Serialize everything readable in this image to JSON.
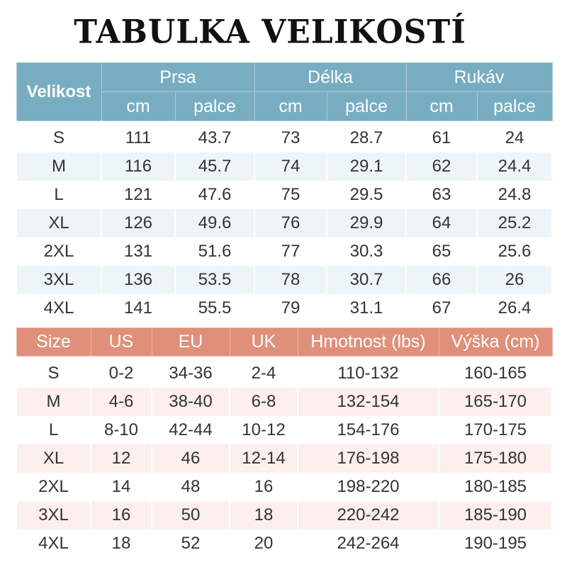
{
  "title": "TABULKA VELIKOSTÍ",
  "colors": {
    "table1_header": "#78adc1",
    "table1_alt_row": "#eef5f8",
    "table2_header": "#e0907a",
    "table2_alt_row": "#fcefed"
  },
  "table1": {
    "size_header": "Velikost",
    "groups": [
      "Prsa",
      "Délka",
      "Rukáv"
    ],
    "units": [
      "cm",
      "palce",
      "cm",
      "palce",
      "cm",
      "palce"
    ],
    "rows": [
      [
        "S",
        "111",
        "43.7",
        "73",
        "28.7",
        "61",
        "24"
      ],
      [
        "M",
        "116",
        "45.7",
        "74",
        "29.1",
        "62",
        "24.4"
      ],
      [
        "L",
        "121",
        "47.6",
        "75",
        "29.5",
        "63",
        "24.8"
      ],
      [
        "XL",
        "126",
        "49.6",
        "76",
        "29.9",
        "64",
        "25.2"
      ],
      [
        "2XL",
        "131",
        "51.6",
        "77",
        "30.3",
        "65",
        "25.6"
      ],
      [
        "3XL",
        "136",
        "53.5",
        "78",
        "30.7",
        "66",
        "26"
      ],
      [
        "4XL",
        "141",
        "55.5",
        "79",
        "31.1",
        "67",
        "26.4"
      ]
    ]
  },
  "table2": {
    "headers": [
      "Size",
      "US",
      "EU",
      "UK",
      "Hmotnost (lbs)",
      "Výška (cm)"
    ],
    "rows": [
      [
        "S",
        "0-2",
        "34-36",
        "2-4",
        "110-132",
        "160-165"
      ],
      [
        "M",
        "4-6",
        "38-40",
        "6-8",
        "132-154",
        "165-170"
      ],
      [
        "L",
        "8-10",
        "42-44",
        "10-12",
        "154-176",
        "170-175"
      ],
      [
        "XL",
        "12",
        "46",
        "12-14",
        "176-198",
        "175-180"
      ],
      [
        "2XL",
        "14",
        "48",
        "16",
        "198-220",
        "180-185"
      ],
      [
        "3XL",
        "16",
        "50",
        "18",
        "220-242",
        "185-190"
      ],
      [
        "4XL",
        "18",
        "52",
        "20",
        "242-264",
        "190-195"
      ]
    ]
  }
}
